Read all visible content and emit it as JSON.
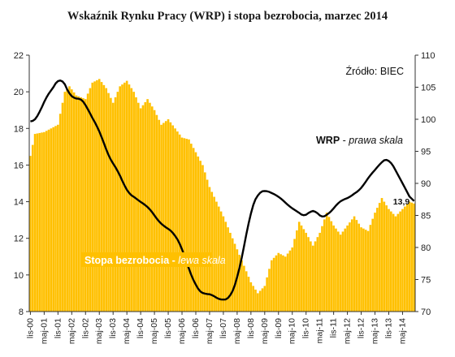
{
  "chart_data": {
    "type": "bar+line",
    "title": "Wskaźnik Rynku Pracy (WRP) i stopa bezrobocia, marzec 2014",
    "source_label": "Źródło: BIEC",
    "colors": {
      "bars": "#FFC000",
      "line": "#000000",
      "plot_background": "#FFFFFF"
    },
    "left_axis": {
      "min": 8,
      "max": 22,
      "ticks": [
        8,
        10,
        12,
        14,
        16,
        18,
        20,
        22
      ]
    },
    "right_axis": {
      "min": 70,
      "max": 110,
      "ticks": [
        70,
        75,
        80,
        85,
        90,
        95,
        100,
        105,
        110
      ]
    },
    "x_tick_labels": [
      "lis-00",
      "maj-01",
      "lis-01",
      "maj-02",
      "lis-02",
      "maj-03",
      "lis-03",
      "maj-04",
      "lis-04",
      "maj-05",
      "lis-05",
      "maj-06",
      "lis-06",
      "maj-07",
      "lis-07",
      "maj-08",
      "lis-08",
      "maj-09",
      "lis-09",
      "maj-10",
      "lis-10",
      "maj-11",
      "lis-11",
      "maj-12",
      "lis-12",
      "maj-13",
      "lis-13",
      "maj-14"
    ],
    "series_bars": {
      "name": "Stopa bezrobocia",
      "axis_note": "lewa skala",
      "axis": "left",
      "last_value_label": "13,9",
      "anchors": [
        [
          0,
          16.5
        ],
        [
          2,
          17.7
        ],
        [
          6,
          17.8
        ],
        [
          12,
          18.2
        ],
        [
          15,
          20.0
        ],
        [
          17,
          20.3
        ],
        [
          20,
          19.8
        ],
        [
          24,
          19.6
        ],
        [
          27,
          20.5
        ],
        [
          30,
          20.7
        ],
        [
          33,
          20.2
        ],
        [
          36,
          19.4
        ],
        [
          39,
          20.3
        ],
        [
          42,
          20.6
        ],
        [
          45,
          20.0
        ],
        [
          48,
          19.1
        ],
        [
          51,
          19.6
        ],
        [
          54,
          19.0
        ],
        [
          57,
          18.2
        ],
        [
          60,
          18.5
        ],
        [
          63,
          18.0
        ],
        [
          66,
          17.5
        ],
        [
          69,
          17.4
        ],
        [
          72,
          16.7
        ],
        [
          75,
          16.0
        ],
        [
          78,
          14.8
        ],
        [
          81,
          14.0
        ],
        [
          84,
          13.2
        ],
        [
          87,
          12.3
        ],
        [
          90,
          11.4
        ],
        [
          93,
          10.5
        ],
        [
          96,
          9.6
        ],
        [
          99,
          9.0
        ],
        [
          102,
          9.4
        ],
        [
          105,
          10.8
        ],
        [
          108,
          11.2
        ],
        [
          111,
          11.0
        ],
        [
          114,
          11.5
        ],
        [
          117,
          12.9
        ],
        [
          120,
          12.3
        ],
        [
          123,
          11.6
        ],
        [
          126,
          12.3
        ],
        [
          129,
          13.4
        ],
        [
          132,
          12.7
        ],
        [
          135,
          12.2
        ],
        [
          138,
          12.7
        ],
        [
          141,
          13.2
        ],
        [
          144,
          12.6
        ],
        [
          147,
          12.4
        ],
        [
          150,
          13.4
        ],
        [
          153,
          14.2
        ],
        [
          156,
          13.6
        ],
        [
          159,
          13.2
        ],
        [
          162,
          13.6
        ],
        [
          165,
          14.0
        ],
        [
          167,
          13.9
        ]
      ]
    },
    "series_line": {
      "name": "WRP",
      "axis_note": "prawa skala",
      "axis": "right",
      "anchors": [
        [
          0,
          99.5
        ],
        [
          3,
          100.0
        ],
        [
          6,
          103.0
        ],
        [
          9,
          104.5
        ],
        [
          12,
          106.0
        ],
        [
          13,
          107.0
        ],
        [
          15,
          105.5
        ],
        [
          18,
          103.0
        ],
        [
          21,
          103.5
        ],
        [
          24,
          102.5
        ],
        [
          27,
          100.0
        ],
        [
          30,
          98.5
        ],
        [
          33,
          95.0
        ],
        [
          36,
          93.0
        ],
        [
          39,
          91.5
        ],
        [
          42,
          88.5
        ],
        [
          45,
          88.0
        ],
        [
          48,
          87.0
        ],
        [
          51,
          86.5
        ],
        [
          54,
          85.0
        ],
        [
          57,
          83.5
        ],
        [
          60,
          83.0
        ],
        [
          63,
          82.0
        ],
        [
          66,
          80.0
        ],
        [
          69,
          76.5
        ],
        [
          72,
          74.0
        ],
        [
          75,
          72.5
        ],
        [
          78,
          73.0
        ],
        [
          81,
          72.0
        ],
        [
          84,
          71.8
        ],
        [
          87,
          72.0
        ],
        [
          90,
          75.0
        ],
        [
          93,
          80.0
        ],
        [
          96,
          86.0
        ],
        [
          99,
          88.5
        ],
        [
          102,
          89.0
        ],
        [
          105,
          88.5
        ],
        [
          108,
          88.0
        ],
        [
          111,
          87.0
        ],
        [
          114,
          86.0
        ],
        [
          117,
          85.5
        ],
        [
          120,
          84.5
        ],
        [
          123,
          86.5
        ],
        [
          126,
          84.5
        ],
        [
          129,
          85.0
        ],
        [
          132,
          86.0
        ],
        [
          135,
          87.5
        ],
        [
          138,
          87.5
        ],
        [
          141,
          88.5
        ],
        [
          144,
          89.0
        ],
        [
          147,
          91.0
        ],
        [
          150,
          92.0
        ],
        [
          153,
          93.5
        ],
        [
          156,
          94.0
        ],
        [
          159,
          92.0
        ],
        [
          162,
          90.0
        ],
        [
          165,
          88.0
        ],
        [
          167,
          86.5
        ]
      ]
    },
    "annotations": {
      "wrp_label_name": "WRP",
      "wrp_label_sep": " - ",
      "wrp_label_note": "prawa skala",
      "stopa_label_name": "Stopa bezrobocia",
      "stopa_label_sep": " - ",
      "stopa_label_note": "lewa skala"
    },
    "grid": false,
    "legend": "inline-annotations"
  }
}
